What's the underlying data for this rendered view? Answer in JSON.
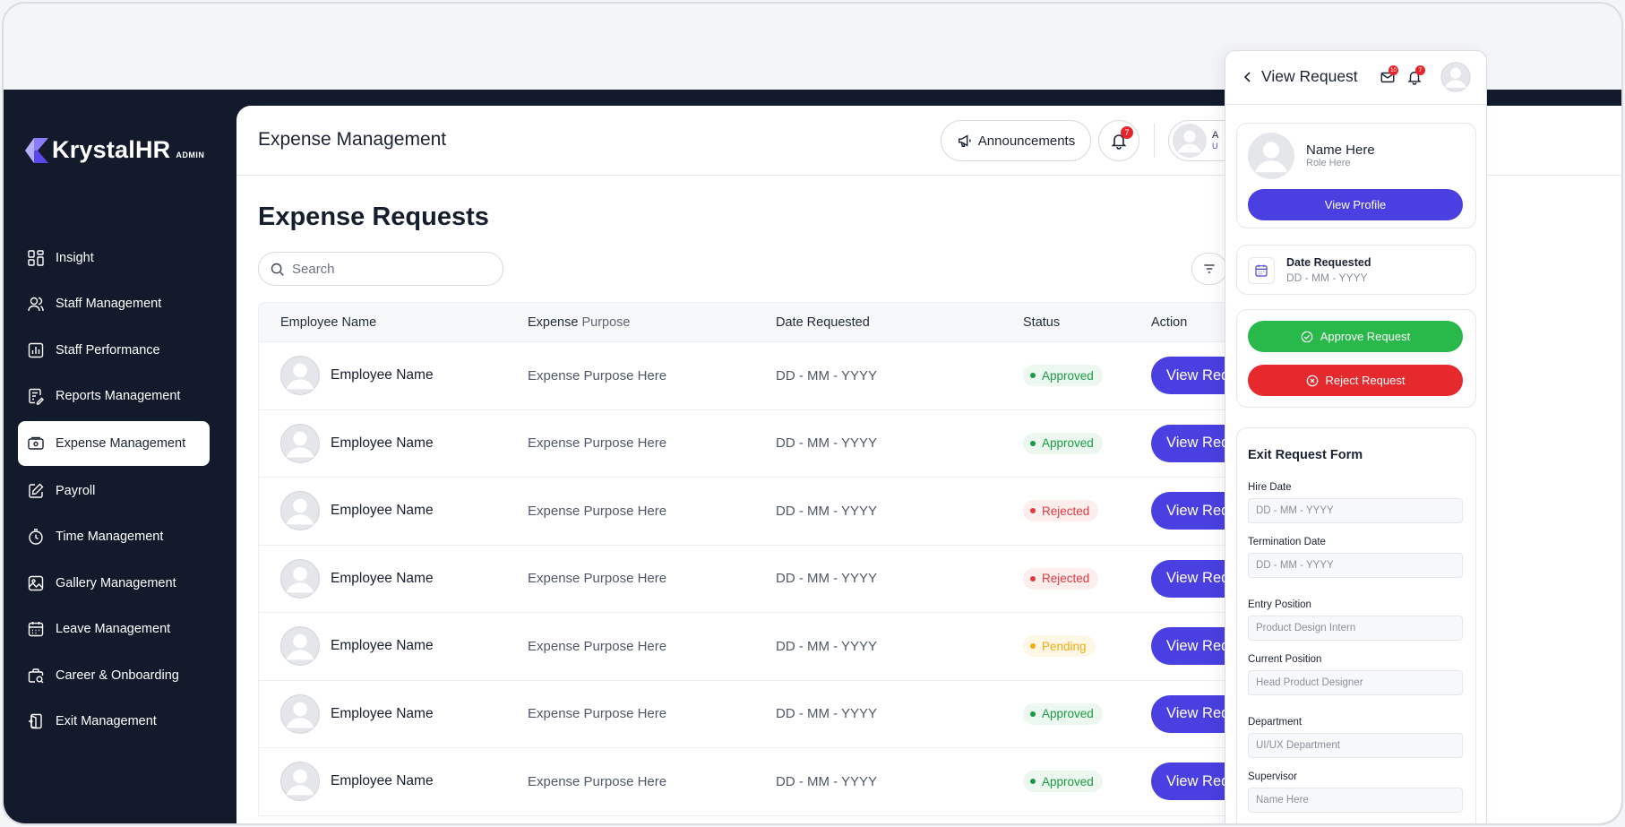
{
  "brand": {
    "name": "KrystalHR",
    "tag": "ADMIN"
  },
  "sidebar": {
    "items": [
      {
        "label": "Insight",
        "icon": "grid-icon"
      },
      {
        "label": "Staff Management",
        "icon": "users-icon"
      },
      {
        "label": "Staff Performance",
        "icon": "chart-icon"
      },
      {
        "label": "Reports Management",
        "icon": "report-icon"
      },
      {
        "label": "Expense Management",
        "icon": "wallet-icon",
        "active": true
      },
      {
        "label": "Payroll",
        "icon": "pen-icon"
      },
      {
        "label": "Time Management",
        "icon": "clock-icon"
      },
      {
        "label": "Gallery Management",
        "icon": "gallery-icon"
      },
      {
        "label": "Leave Management",
        "icon": "calendar-icon"
      },
      {
        "label": "Career & Onboarding",
        "icon": "briefcase-icon"
      },
      {
        "label": "Exit Management",
        "icon": "exit-icon"
      }
    ]
  },
  "header": {
    "title": "Expense Management",
    "announcements_label": "Announcements",
    "notification_count": "7",
    "user_initial": "A",
    "user_sub": "U"
  },
  "main": {
    "section_title": "Expense Requests",
    "search_placeholder": "Search",
    "columns": {
      "employee": "Employee Name",
      "purpose_a": "Expense",
      "purpose_b": " Purpose",
      "date": "Date Requested",
      "status": "Status",
      "action": "Action"
    },
    "rows": [
      {
        "name": "Employee Name",
        "purpose": "Expense Purpose Here",
        "date": "DD - MM - YYYY",
        "status": "Approved",
        "status_kind": "approved",
        "action": "View Request"
      },
      {
        "name": "Employee Name",
        "purpose": "Expense Purpose Here",
        "date": "DD - MM - YYYY",
        "status": "Approved",
        "status_kind": "approved",
        "action": "View Request"
      },
      {
        "name": "Employee Name",
        "purpose": "Expense Purpose Here",
        "date": "DD - MM - YYYY",
        "status": "Rejected",
        "status_kind": "rejected",
        "action": "View Request"
      },
      {
        "name": "Employee Name",
        "purpose": "Expense Purpose Here",
        "date": "DD - MM - YYYY",
        "status": "Rejected",
        "status_kind": "rejected",
        "action": "View Request"
      },
      {
        "name": "Employee Name",
        "purpose": "Expense Purpose Here",
        "date": "DD - MM - YYYY",
        "status": "Pending",
        "status_kind": "pending",
        "action": "View Request"
      },
      {
        "name": "Employee Name",
        "purpose": "Expense Purpose Here",
        "date": "DD - MM - YYYY",
        "status": "Approved",
        "status_kind": "approved",
        "action": "View Request"
      },
      {
        "name": "Employee Name",
        "purpose": "Expense Purpose Here",
        "date": "DD - MM - YYYY",
        "status": "Approved",
        "status_kind": "approved",
        "action": "View Request"
      }
    ]
  },
  "panel": {
    "title": "View Request",
    "mail_count": "10",
    "bell_count": "7",
    "profile": {
      "name": "Name Here",
      "role": "Role Here",
      "button": "View Profile"
    },
    "date": {
      "label": "Date Requested",
      "value": "DD - MM - YYYY"
    },
    "approve_label": "Approve Request",
    "reject_label": "Reject Request",
    "form": {
      "title": "Exit Request Form",
      "fields": [
        {
          "label": "Hire Date",
          "value": "DD - MM - YYYY"
        },
        {
          "label": "Termination Date",
          "value": "DD - MM - YYYY"
        },
        {
          "label": "Entry Position",
          "value": "Product Design Intern"
        },
        {
          "label": "Current Position",
          "value": "Head Product Designer"
        },
        {
          "label": "Department",
          "value": "UI/UX Department"
        },
        {
          "label": "Supervisor",
          "value": "Name Here"
        }
      ]
    }
  },
  "colors": {
    "sidebar_bg": "#121a2b",
    "accent": "#4a3fe0",
    "approve": "#29b94a",
    "reject": "#e5292d",
    "pending": "#f0ac0e"
  }
}
